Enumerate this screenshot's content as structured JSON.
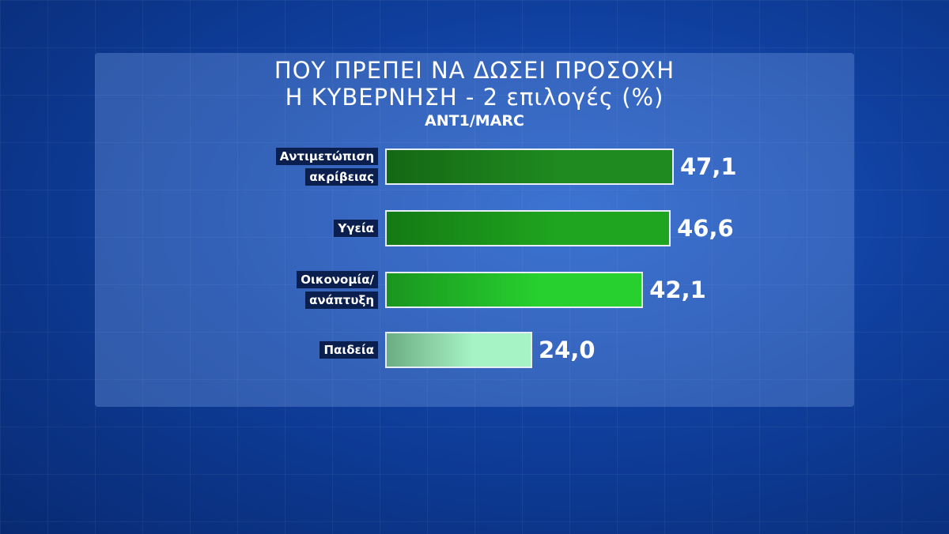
{
  "chart_data": {
    "type": "bar",
    "orientation": "horizontal",
    "title": [
      "ΠΟΥ ΠΡΕΠΕΙ ΝΑ ΔΩΣΕΙ ΠΡΟΣΟΧΗ",
      "Η ΚΥΒΕΡΝΗΣΗ - 2 επιλογές (%)"
    ],
    "subtitle": "ANT1/MARC",
    "categories": [
      "Αντιμετώπιση ακρίβειας",
      "Υγεία",
      "Οικονομία/ ανάπτυξη",
      "Παιδεία"
    ],
    "values": [
      47.1,
      46.6,
      42.1,
      24.0
    ],
    "value_labels": [
      "47,1",
      "46,6",
      "42,1",
      "24,0"
    ],
    "colors": [
      "#1f8a1f",
      "#1fa51f",
      "#27d02f",
      "#a6f3c6"
    ]
  }
}
